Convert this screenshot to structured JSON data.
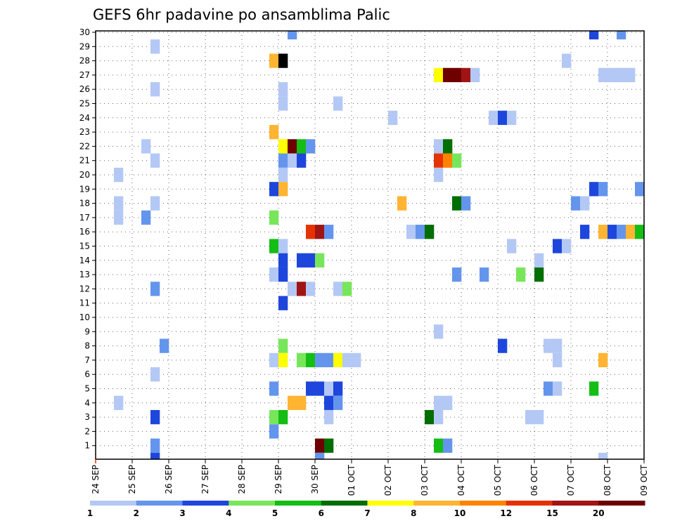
{
  "chart_data": {
    "type": "heatmap",
    "title": "GEFS 6hr padavine po ansamblima Palic",
    "xlabel": "",
    "ylabel": "",
    "x_tick_labels": [
      "24 SEP",
      "25 SEP",
      "26 SEP",
      "27 SEP",
      "28 SEP",
      "29 SEP",
      "30 SEP",
      "01 OCT",
      "02 OCT",
      "03 OCT",
      "04 OCT",
      "05 OCT",
      "06 OCT",
      "07 OCT",
      "08 OCT",
      "09 OCT"
    ],
    "x_unit": "6-hour step",
    "x_range": [
      0,
      60
    ],
    "y_range": [
      1,
      30
    ],
    "y_tick_labels": [
      "1",
      "2",
      "3",
      "4",
      "5",
      "6",
      "7",
      "8",
      "9",
      "10",
      "11",
      "12",
      "13",
      "14",
      "15",
      "16",
      "17",
      "18",
      "19",
      "20",
      "21",
      "22",
      "23",
      "24",
      "25",
      "26",
      "27",
      "28",
      "29",
      "30"
    ],
    "grid": "dotted",
    "legend": {
      "position": "bottom",
      "colors": [
        "#b4c8f5",
        "#6495ed",
        "#1e46dc",
        "#78e65a",
        "#14be14",
        "#006e00",
        "#ffff00",
        "#ffb432",
        "#ff8200",
        "#e63200",
        "#a01414",
        "#6e0000"
      ],
      "tick_labels": [
        "1",
        "2",
        "3",
        "4",
        "5",
        "6",
        "7",
        "8",
        "10",
        "12",
        "15",
        "20"
      ]
    },
    "cells": [
      [
        21,
        30,
        2
      ],
      [
        54,
        30,
        3
      ],
      [
        57,
        30,
        2
      ],
      [
        6,
        29,
        1
      ],
      [
        60,
        29,
        8
      ],
      [
        19,
        28,
        8
      ],
      [
        20,
        28,
        13
      ],
      [
        51,
        28,
        1
      ],
      [
        37,
        27,
        7
      ],
      [
        38,
        27,
        12
      ],
      [
        39,
        27,
        12
      ],
      [
        40,
        27,
        11
      ],
      [
        41,
        27,
        1
      ],
      [
        55,
        27,
        1
      ],
      [
        56,
        27,
        1
      ],
      [
        57,
        27,
        1
      ],
      [
        58,
        27,
        1
      ],
      [
        6,
        26,
        1
      ],
      [
        20,
        26,
        1
      ],
      [
        20,
        25,
        1
      ],
      [
        26,
        25,
        1
      ],
      [
        32,
        24,
        1
      ],
      [
        43,
        24,
        1
      ],
      [
        44,
        24,
        3
      ],
      [
        45,
        24,
        1
      ],
      [
        19,
        23,
        8
      ],
      [
        5,
        22,
        1
      ],
      [
        20,
        22,
        7
      ],
      [
        21,
        22,
        12
      ],
      [
        22,
        22,
        5
      ],
      [
        23,
        22,
        2
      ],
      [
        37,
        22,
        1
      ],
      [
        38,
        22,
        6
      ],
      [
        6,
        21,
        1
      ],
      [
        20,
        21,
        2
      ],
      [
        21,
        21,
        1
      ],
      [
        22,
        21,
        3
      ],
      [
        37,
        21,
        10
      ],
      [
        38,
        21,
        9
      ],
      [
        39,
        21,
        4
      ],
      [
        60,
        21,
        1
      ],
      [
        2,
        20,
        1
      ],
      [
        20,
        20,
        1
      ],
      [
        37,
        20,
        1
      ],
      [
        19,
        19,
        3
      ],
      [
        20,
        19,
        8
      ],
      [
        54,
        19,
        3
      ],
      [
        55,
        19,
        2
      ],
      [
        59,
        19,
        2
      ],
      [
        2,
        18,
        1
      ],
      [
        6,
        18,
        1
      ],
      [
        33,
        18,
        8
      ],
      [
        39,
        18,
        6
      ],
      [
        40,
        18,
        2
      ],
      [
        52,
        18,
        2
      ],
      [
        53,
        18,
        1
      ],
      [
        2,
        17,
        1
      ],
      [
        5,
        17,
        2
      ],
      [
        19,
        17,
        4
      ],
      [
        23,
        16,
        10
      ],
      [
        24,
        16,
        11
      ],
      [
        25,
        16,
        2
      ],
      [
        34,
        16,
        1
      ],
      [
        35,
        16,
        2
      ],
      [
        36,
        16,
        6
      ],
      [
        53,
        16,
        3
      ],
      [
        55,
        16,
        8
      ],
      [
        56,
        16,
        3
      ],
      [
        57,
        16,
        2
      ],
      [
        58,
        16,
        8
      ],
      [
        59,
        16,
        5
      ],
      [
        60,
        16,
        8
      ],
      [
        61,
        16,
        2
      ],
      [
        19,
        15,
        5
      ],
      [
        20,
        15,
        1
      ],
      [
        45,
        15,
        1
      ],
      [
        50,
        15,
        3
      ],
      [
        51,
        15,
        1
      ],
      [
        20,
        14,
        3
      ],
      [
        22,
        14,
        3
      ],
      [
        23,
        14,
        3
      ],
      [
        24,
        14,
        4
      ],
      [
        48,
        14,
        1
      ],
      [
        19,
        13,
        1
      ],
      [
        20,
        13,
        3
      ],
      [
        39,
        13,
        2
      ],
      [
        42,
        13,
        2
      ],
      [
        46,
        13,
        4
      ],
      [
        48,
        13,
        6
      ],
      [
        6,
        12,
        2
      ],
      [
        21,
        12,
        1
      ],
      [
        22,
        12,
        11
      ],
      [
        23,
        12,
        1
      ],
      [
        26,
        12,
        1
      ],
      [
        27,
        12,
        4
      ],
      [
        20,
        11,
        3
      ],
      [
        60,
        11,
        1
      ],
      [
        37,
        9,
        1
      ],
      [
        7,
        8,
        2
      ],
      [
        20,
        8,
        4
      ],
      [
        44,
        8,
        3
      ],
      [
        49,
        8,
        1
      ],
      [
        50,
        8,
        1
      ],
      [
        19,
        7,
        1
      ],
      [
        20,
        7,
        7
      ],
      [
        22,
        7,
        4
      ],
      [
        23,
        7,
        5
      ],
      [
        24,
        7,
        2
      ],
      [
        25,
        7,
        2
      ],
      [
        26,
        7,
        7
      ],
      [
        27,
        7,
        1
      ],
      [
        28,
        7,
        1
      ],
      [
        50,
        7,
        1
      ],
      [
        55,
        7,
        8
      ],
      [
        6,
        6,
        1
      ],
      [
        19,
        5,
        2
      ],
      [
        23,
        5,
        3
      ],
      [
        24,
        5,
        3
      ],
      [
        25,
        5,
        1
      ],
      [
        26,
        5,
        3
      ],
      [
        49,
        5,
        2
      ],
      [
        50,
        5,
        1
      ],
      [
        54,
        5,
        5
      ],
      [
        2,
        4,
        1
      ],
      [
        21,
        4,
        8
      ],
      [
        22,
        4,
        8
      ],
      [
        25,
        4,
        3
      ],
      [
        26,
        4,
        2
      ],
      [
        37,
        4,
        1
      ],
      [
        38,
        4,
        1
      ],
      [
        6,
        3,
        3
      ],
      [
        19,
        3,
        4
      ],
      [
        20,
        3,
        5
      ],
      [
        25,
        3,
        1
      ],
      [
        36,
        3,
        6
      ],
      [
        37,
        3,
        1
      ],
      [
        47,
        3,
        1
      ],
      [
        48,
        3,
        1
      ],
      [
        19,
        2,
        2
      ],
      [
        60,
        2,
        2
      ],
      [
        6,
        1,
        2
      ],
      [
        24,
        1,
        12
      ],
      [
        25,
        1,
        6
      ],
      [
        37,
        1,
        5
      ],
      [
        38,
        1,
        2
      ],
      [
        6,
        0,
        3
      ],
      [
        24,
        0,
        2
      ],
      [
        55,
        0,
        1
      ]
    ]
  }
}
